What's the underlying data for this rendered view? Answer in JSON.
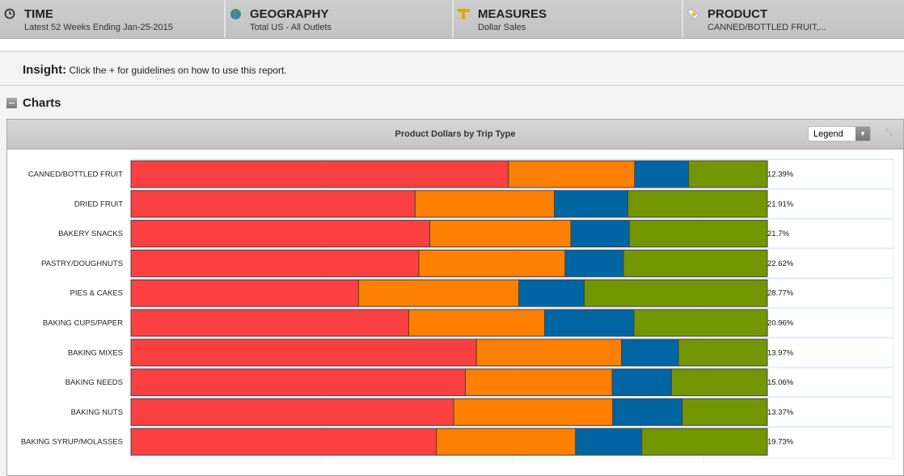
{
  "filters": [
    {
      "icon": "clock-icon",
      "title": "TIME",
      "value": "Latest 52 Weeks Ending Jan-25-2015"
    },
    {
      "icon": "globe-icon",
      "title": "GEOGRAPHY",
      "value": "Total US - All Outlets"
    },
    {
      "icon": "ruler-icon",
      "title": "MEASURES",
      "value": "Dollar Sales"
    },
    {
      "icon": "tag-icon",
      "title": "PRODUCT",
      "value": "CANNED/BOTTLED FRUIT,..."
    }
  ],
  "insight": {
    "label": "Insight:",
    "text": "Click the + for guidelines on how to use this report."
  },
  "section": {
    "title": "Charts"
  },
  "panel": {
    "legend_select": "Legend"
  },
  "chart_data": {
    "type": "bar",
    "orientation": "horizontal",
    "stacked": "percent",
    "title": "Product Dollars by Trip Type",
    "categories": [
      "CANNED/BOTTLED FRUIT",
      "DRIED FRUIT",
      "BAKERY SNACKS",
      "PASTRY/DOUGHNUTS",
      "PIES & CAKES",
      "BAKING CUPS/PAPER",
      "BAKING MIXES",
      "BAKING NEEDS",
      "BAKING NUTS",
      "BAKING SYRUP/MOLASSES"
    ],
    "colors": [
      "#fa4040",
      "#ff7f00",
      "#0066a3",
      "#739600"
    ],
    "series": [
      {
        "values": [
          59.31,
          44.65,
          46.96,
          45.23,
          35.76,
          43.64,
          54.28,
          52.55,
          50.7,
          48
        ]
      },
      {
        "values": [
          19.84,
          21.87,
          22.18,
          22.99,
          25.19,
          21.37,
          22.8,
          23.06,
          25,
          21.86
        ]
      },
      {
        "values": [
          8.47,
          11.57,
          9.17,
          9.16,
          10.28,
          14.04,
          8.95,
          9.33,
          10.93,
          10.41
        ]
      },
      {
        "values": [
          12.39,
          21.91,
          21.7,
          22.62,
          28.77,
          20.96,
          13.97,
          15.06,
          13.37,
          19.73
        ]
      }
    ],
    "labels": [
      [
        "59.31%",
        "19.84%",
        "8.47%",
        "12.39%"
      ],
      [
        "44.65%",
        "21.87%",
        "11.57%",
        "21.91%"
      ],
      [
        "46.96%",
        "22.18%",
        "9.17%",
        "21.7%"
      ],
      [
        "45.23%",
        "22.99%",
        "9.16%",
        "22.62%"
      ],
      [
        "35.76%",
        "25.19%",
        "10.28%",
        "28.77%"
      ],
      [
        "43.64%",
        "21.37%",
        "14.04%",
        "20.96%"
      ],
      [
        "54.28%",
        "22.8%",
        "8.95%",
        "13.97%"
      ],
      [
        "52.55%",
        "23.06%",
        "9.33%",
        "15.06%"
      ],
      [
        "50.7%",
        "25%",
        "10.93%",
        "13.37%"
      ],
      [
        "48%",
        "21.86%",
        "10.41%",
        "19.73%"
      ]
    ],
    "xlim": [
      0,
      100
    ],
    "grid": true
  }
}
